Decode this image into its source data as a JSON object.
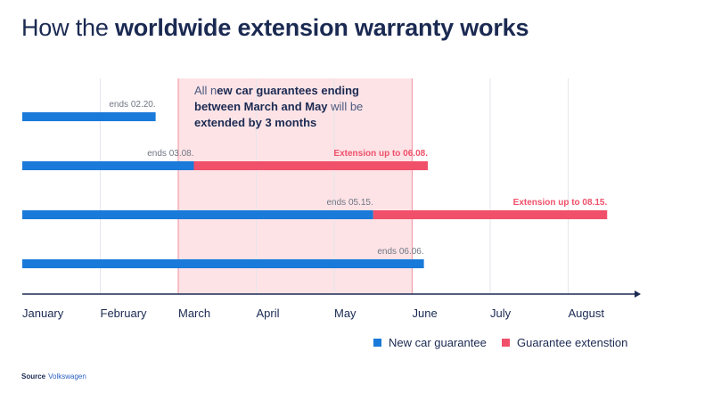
{
  "title": {
    "light": "How the ",
    "bold": "worldwide extension warranty works"
  },
  "annotation": {
    "line1_prefix": "All n",
    "line1_bold": "ew car guarantees ending",
    "line2_bold": "between March and May",
    "line2_suffix": " will be",
    "line3_bold": "extended by 3 months"
  },
  "source": {
    "label": "Source",
    "value": "Volkswagen"
  },
  "colors": {
    "guarantee": "#1a7ad9",
    "extension": "#f0506a",
    "highlight_fill": "#fde3e6",
    "highlight_border": "#f2a0ac",
    "axis": "#1b2a52",
    "grid": "#e4e6ec",
    "label": "#707784",
    "title": "#1b2a52"
  },
  "chart_data": {
    "type": "bar",
    "orientation": "horizontal",
    "x_axis": {
      "tick_labels": [
        "January",
        "February",
        "March",
        "April",
        "May",
        "June",
        "July",
        "August"
      ],
      "unit": "month",
      "range": [
        0,
        8.1
      ]
    },
    "highlight_range": {
      "from": "March",
      "to": "May",
      "start": 2,
      "end": 5
    },
    "series": [
      {
        "name": "New car guarantee",
        "color": "#1a7ad9"
      },
      {
        "name": "Guarantee extenstion",
        "color": "#f0506a"
      }
    ],
    "bars": [
      {
        "guarantee_end": 1.71,
        "guarantee_label": "ends 02.20.",
        "extension_end": null,
        "extension_label": ""
      },
      {
        "guarantee_end": 2.2,
        "guarantee_label": "ends 03.08.",
        "extension_end": 5.2,
        "extension_label": "Extension up to 06.08."
      },
      {
        "guarantee_end": 4.5,
        "guarantee_label": "ends 05.15.",
        "extension_end": 7.5,
        "extension_label": "Extension up to 08.15."
      },
      {
        "guarantee_end": 5.15,
        "guarantee_label": "ends 06.06.",
        "extension_end": null,
        "extension_label": ""
      }
    ],
    "legend_position": "bottom-right",
    "grid": true
  }
}
